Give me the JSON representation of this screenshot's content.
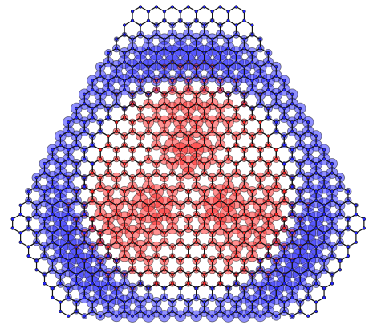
{
  "figure": {
    "type": "lattice",
    "colors": {
      "positive": "#ff2020",
      "negative": "#2020ff"
    }
  }
}
